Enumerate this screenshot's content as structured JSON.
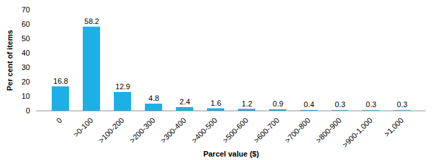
{
  "chart_data": {
    "type": "bar",
    "categories": [
      "0",
      ">0-100",
      ">100-200",
      ">200-300",
      ">300-400",
      ">400-500",
      ">500-600",
      ">600-700",
      ">700-800",
      ">800-900",
      ">900-1,000",
      ">1,000"
    ],
    "values": [
      16.8,
      58.2,
      12.9,
      4.8,
      2.4,
      1.6,
      1.2,
      0.9,
      0.4,
      0.3,
      0.3,
      0.3
    ],
    "color": "#1cb0e6",
    "xlabel": "Parcel value ($)",
    "ylabel": "Per cent of items",
    "ylim": [
      0,
      70
    ],
    "yticks": [
      0,
      10,
      20,
      30,
      40,
      50,
      60,
      70
    ],
    "grid": false,
    "data_labels": true
  }
}
